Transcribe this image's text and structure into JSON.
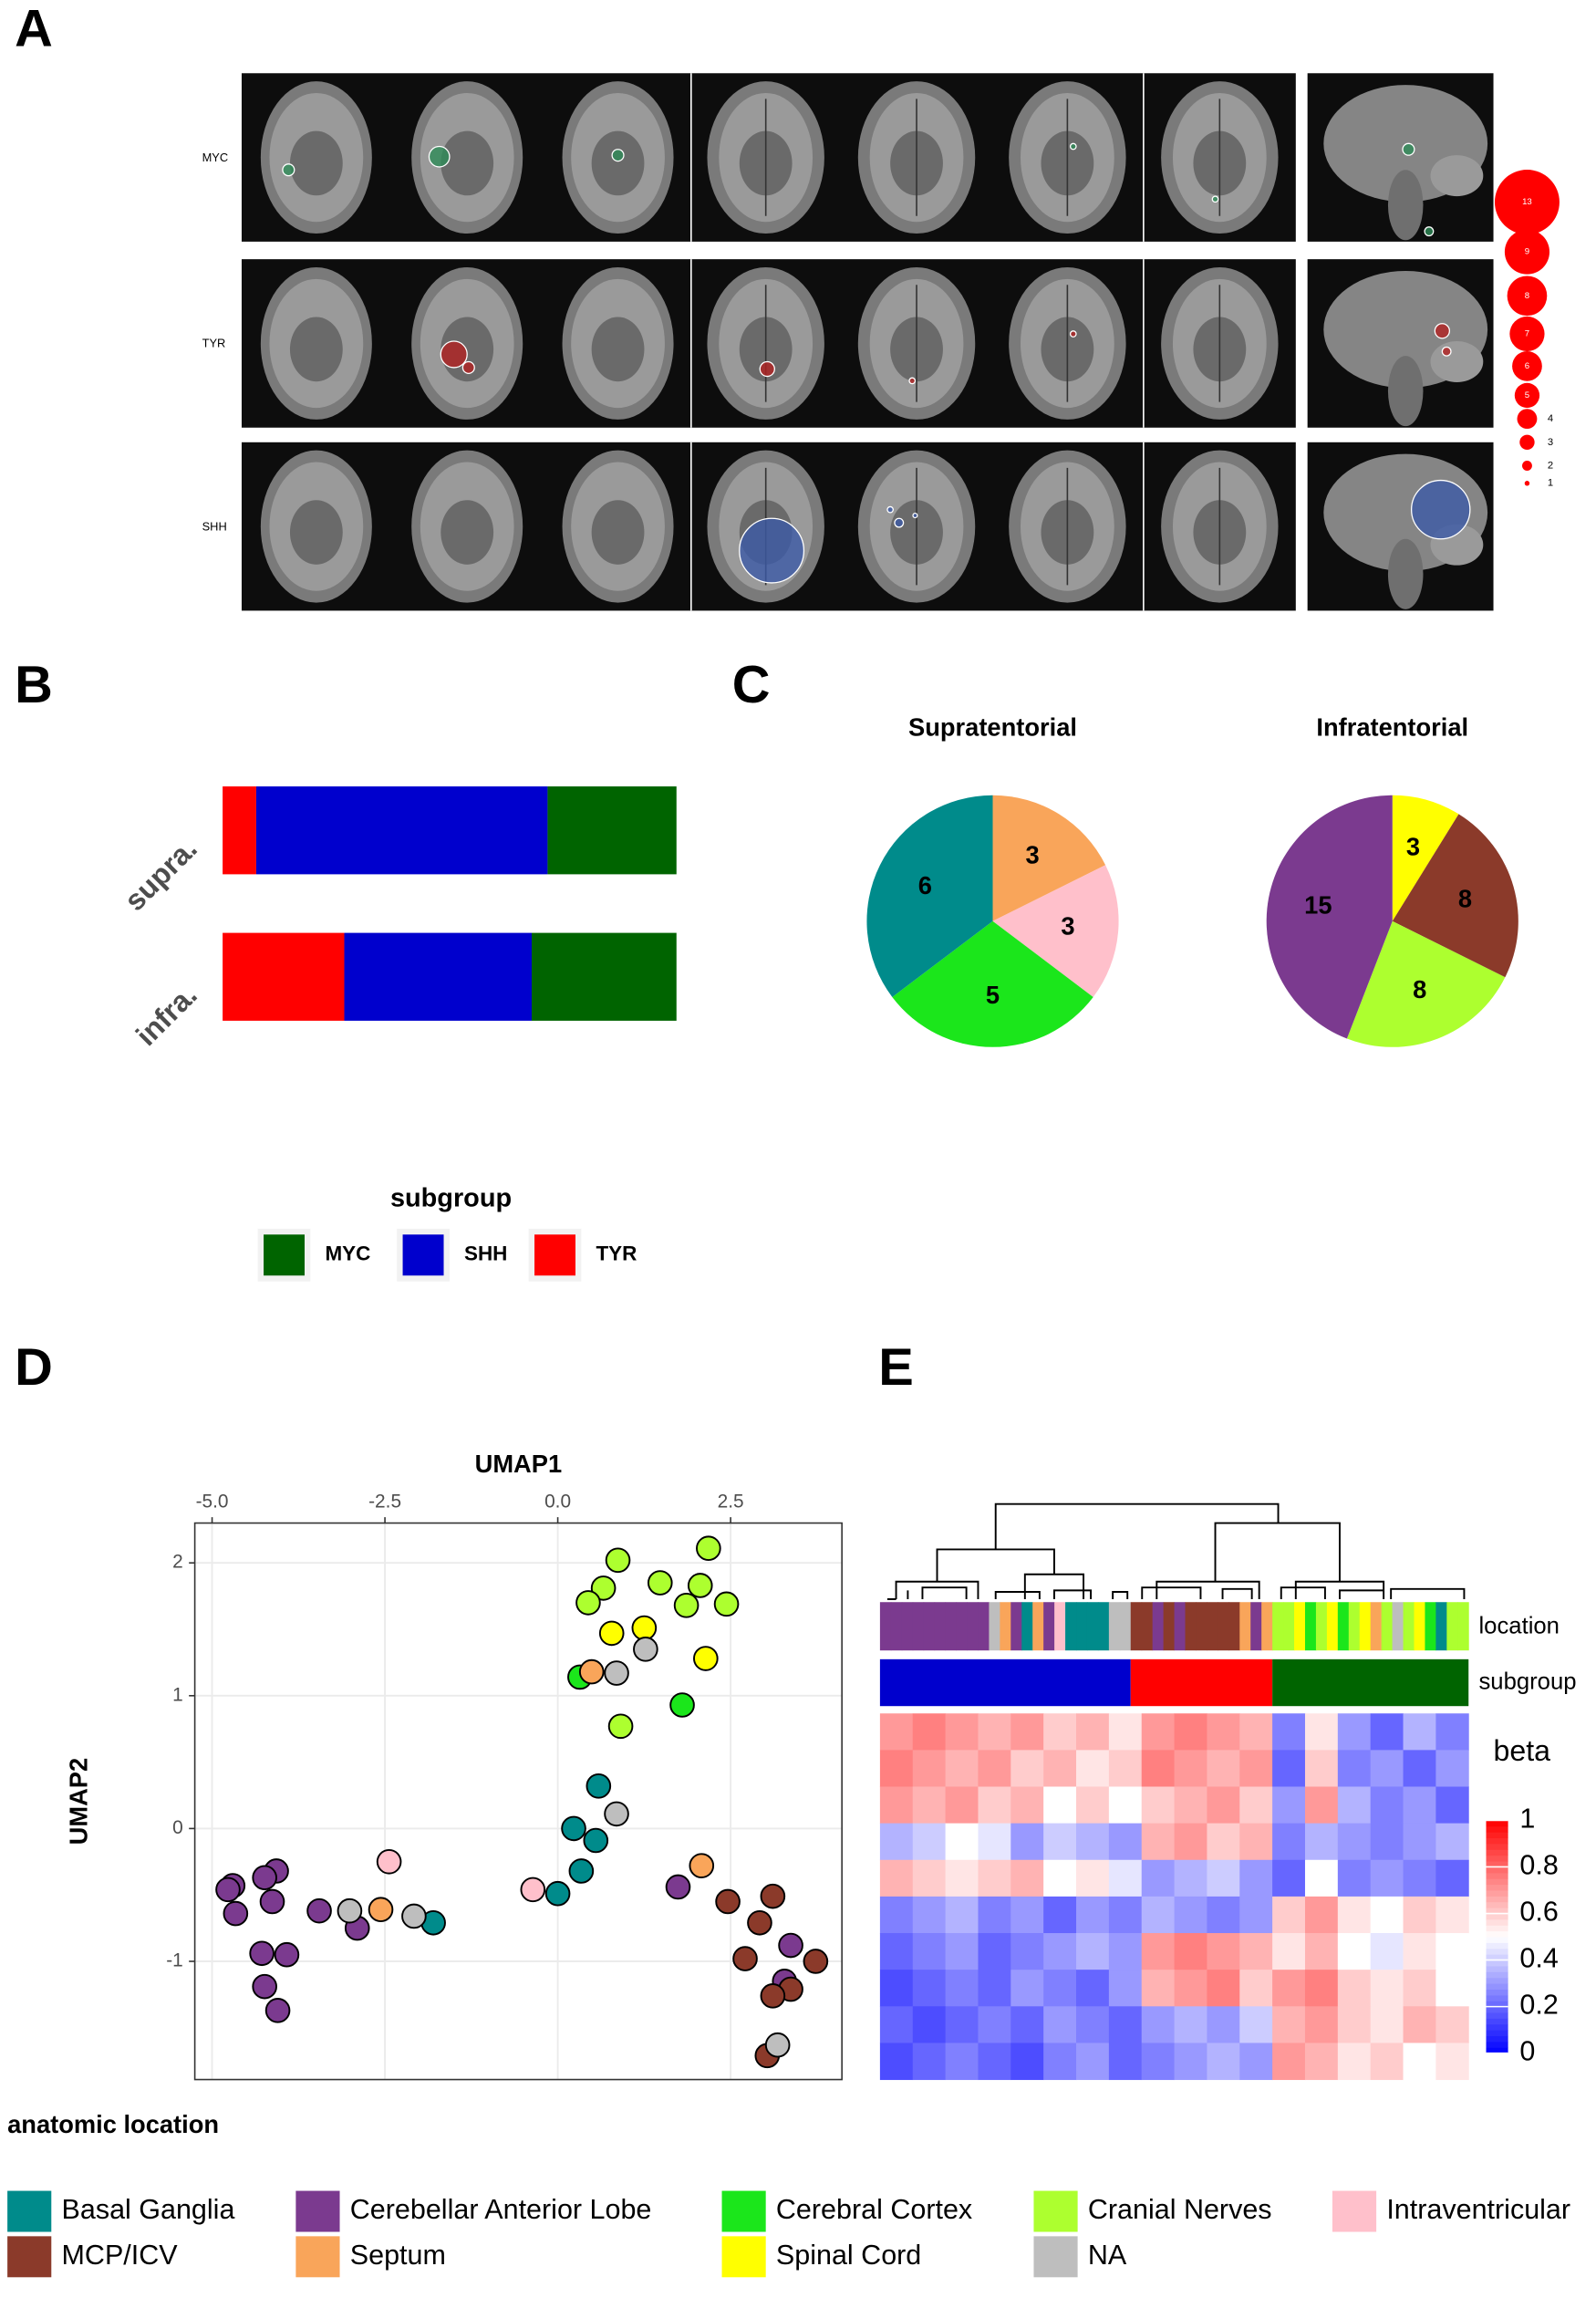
{
  "panels": {
    "a": "A",
    "b": "B",
    "c": "C",
    "d": "D",
    "e": "E"
  },
  "mri": {
    "rows": [
      "MYC",
      "TYR",
      "SHH"
    ],
    "size_legend": [
      13,
      9,
      8,
      7,
      6,
      5,
      4,
      3,
      2,
      1
    ]
  },
  "chart_data": [
    {
      "type": "hbar_stacked",
      "categories": [
        "supra.",
        "infra."
      ],
      "legend_title": "subgroup",
      "series": [
        {
          "name": "MYC",
          "color": "#006400",
          "values": [
            0.284,
            0.319
          ]
        },
        {
          "name": "SHH",
          "color": "#0000cd",
          "values": [
            0.642,
            0.413
          ]
        },
        {
          "name": "TYR",
          "color": "#ff0000",
          "values": [
            0.074,
            0.268
          ]
        }
      ]
    },
    {
      "type": "pie",
      "title": "Supratentorial",
      "values": [
        3,
        3,
        5,
        6
      ],
      "colors": [
        "#f9a55a",
        "#ffc0cb",
        "#1be61b",
        "#008b8b"
      ]
    },
    {
      "type": "pie",
      "title": "Infratentorial",
      "values": [
        3,
        8,
        8,
        15
      ],
      "colors": [
        "#ffff00",
        "#8b3a2a",
        "#adff2f",
        "#7b3a8f"
      ]
    },
    {
      "type": "scatter",
      "xlabel": "UMAP1",
      "ylabel": "UMAP2",
      "xlim": [
        -5.25,
        4.11
      ],
      "ylim": [
        -1.89,
        2.3
      ],
      "xticks": [
        {
          "value": -5,
          "label": "-5.0"
        },
        {
          "value": -2.5,
          "label": "-2.5"
        },
        {
          "value": 0,
          "label": "0.0"
        },
        {
          "value": 2.5,
          "label": "2.5"
        }
      ],
      "yticks": [
        -1,
        0,
        1,
        2
      ],
      "grid": true,
      "legend_title": "anatomic location",
      "series": [
        {
          "name": "Basal Ganglia",
          "color": "#008b8b",
          "x": [
            0.59,
            0.23,
            0.55,
            0.34,
            0.0,
            -1.8
          ],
          "y": [
            0.32,
            0.0,
            -0.09,
            -0.32,
            -0.49,
            -0.71
          ]
        },
        {
          "name": "Cerebellar Anterior Lobe",
          "color": "#7b3a8f",
          "x": [
            1.74,
            3.37,
            3.28,
            -4.7,
            -4.77,
            -4.07,
            -4.24,
            -4.13,
            -4.66,
            -3.45,
            -2.9,
            -4.28,
            -3.92,
            -4.24,
            -4.05
          ],
          "y": [
            -0.44,
            -0.88,
            -1.15,
            -0.43,
            -0.46,
            -0.32,
            -0.37,
            -0.55,
            -0.64,
            -0.62,
            -0.75,
            -0.94,
            -0.95,
            -1.19,
            -1.37
          ]
        },
        {
          "name": "Cerebral Cortex",
          "color": "#1be61b",
          "x": [
            0.32,
            1.8
          ],
          "y": [
            1.14,
            0.93
          ]
        },
        {
          "name": "Cranial Nerves",
          "color": "#adff2f",
          "x": [
            2.18,
            0.87,
            0.66,
            0.44,
            1.48,
            2.06,
            2.44,
            1.86,
            0.91
          ],
          "y": [
            2.11,
            2.02,
            1.81,
            1.7,
            1.85,
            1.83,
            1.69,
            1.68,
            0.77
          ]
        },
        {
          "name": "Intraventricular",
          "color": "#ffc0cb",
          "x": [
            -0.36,
            -2.44
          ],
          "y": [
            -0.46,
            -0.25
          ]
        },
        {
          "name": "MCP/ICV",
          "color": "#8b3a2a",
          "x": [
            2.46,
            3.11,
            2.92,
            2.71,
            3.73,
            3.37,
            3.11,
            3.03
          ],
          "y": [
            -0.55,
            -0.51,
            -0.71,
            -0.98,
            -1.0,
            -1.21,
            -1.26,
            -1.71
          ]
        },
        {
          "name": "Septum",
          "color": "#f9a55a",
          "x": [
            0.49,
            2.08,
            -2.56
          ],
          "y": [
            1.18,
            -0.28,
            -0.61
          ]
        },
        {
          "name": "Spinal Cord",
          "color": "#ffff00",
          "x": [
            1.25,
            0.78,
            2.14
          ],
          "y": [
            1.51,
            1.47,
            1.28
          ]
        },
        {
          "name": "NA",
          "color": "#bebebe",
          "x": [
            1.27,
            0.85,
            0.85,
            3.18,
            -3.01,
            -2.08
          ],
          "y": [
            1.35,
            1.17,
            0.11,
            -1.63,
            -0.62,
            -0.66
          ]
        }
      ]
    },
    {
      "type": "heatmap",
      "annotation_labels": [
        "location",
        "subgroup"
      ],
      "colorbar_title": "beta",
      "clim": [
        0,
        1
      ],
      "cticks": [
        0,
        0.2,
        0.4,
        0.6,
        0.8,
        1
      ],
      "location_colors": [
        "#7b3a8f",
        "#7b3a8f",
        "#7b3a8f",
        "#7b3a8f",
        "#7b3a8f",
        "#7b3a8f",
        "#7b3a8f",
        "#7b3a8f",
        "#7b3a8f",
        "#7b3a8f",
        "#bebebe",
        "#f9a55a",
        "#7b3a8f",
        "#008b8b",
        "#f9a55a",
        "#7b3a8f",
        "#ffc0cb",
        "#008b8b",
        "#008b8b",
        "#008b8b",
        "#008b8b",
        "#bebebe",
        "#bebebe",
        "#8b3a2a",
        "#8b3a2a",
        "#7b3a8f",
        "#8b3a2a",
        "#7b3a8f",
        "#8b3a2a",
        "#8b3a2a",
        "#8b3a2a",
        "#8b3a2a",
        "#8b3a2a",
        "#f9a55a",
        "#7b3a8f",
        "#f9a55a",
        "#adff2f",
        "#adff2f",
        "#ffff00",
        "#1be61b",
        "#adff2f",
        "#ffff00",
        "#1be61b",
        "#adff2f",
        "#ffff00",
        "#f9a55a",
        "#adff2f",
        "#bebebe",
        "#adff2f",
        "#ffff00",
        "#1be61b",
        "#008b8b",
        "#adff2f",
        "#adff2f"
      ],
      "subgroup_counts": [
        23,
        13,
        18
      ],
      "subgroup_colors": [
        "#0000cd",
        "#ff0000",
        "#006400"
      ],
      "z": [
        [
          0.7,
          0.75,
          0.7,
          0.65,
          0.7,
          0.6,
          0.65,
          0.55,
          0.7,
          0.75,
          0.7,
          0.65,
          0.25,
          0.55,
          0.3,
          0.2,
          0.35,
          0.25
        ],
        [
          0.75,
          0.7,
          0.65,
          0.7,
          0.6,
          0.65,
          0.55,
          0.6,
          0.75,
          0.7,
          0.65,
          0.7,
          0.2,
          0.6,
          0.25,
          0.3,
          0.2,
          0.3
        ],
        [
          0.7,
          0.65,
          0.7,
          0.6,
          0.65,
          0.5,
          0.6,
          0.5,
          0.6,
          0.65,
          0.7,
          0.6,
          0.3,
          0.7,
          0.35,
          0.25,
          0.3,
          0.2
        ],
        [
          0.35,
          0.4,
          0.5,
          0.45,
          0.3,
          0.4,
          0.35,
          0.3,
          0.65,
          0.7,
          0.6,
          0.65,
          0.25,
          0.35,
          0.3,
          0.25,
          0.3,
          0.35
        ],
        [
          0.65,
          0.6,
          0.55,
          0.6,
          0.65,
          0.5,
          0.55,
          0.45,
          0.3,
          0.35,
          0.4,
          0.3,
          0.2,
          0.5,
          0.25,
          0.3,
          0.25,
          0.2
        ],
        [
          0.25,
          0.3,
          0.35,
          0.25,
          0.3,
          0.2,
          0.3,
          0.25,
          0.35,
          0.3,
          0.25,
          0.3,
          0.6,
          0.7,
          0.55,
          0.5,
          0.6,
          0.55
        ],
        [
          0.2,
          0.25,
          0.3,
          0.2,
          0.25,
          0.3,
          0.35,
          0.3,
          0.7,
          0.75,
          0.7,
          0.65,
          0.55,
          0.65,
          0.5,
          0.45,
          0.55,
          0.5
        ],
        [
          0.15,
          0.2,
          0.25,
          0.2,
          0.3,
          0.25,
          0.2,
          0.3,
          0.65,
          0.7,
          0.75,
          0.6,
          0.7,
          0.75,
          0.6,
          0.55,
          0.6,
          0.5
        ],
        [
          0.2,
          0.15,
          0.2,
          0.25,
          0.2,
          0.3,
          0.25,
          0.2,
          0.3,
          0.35,
          0.3,
          0.4,
          0.65,
          0.7,
          0.6,
          0.55,
          0.65,
          0.6
        ],
        [
          0.15,
          0.2,
          0.25,
          0.2,
          0.15,
          0.25,
          0.3,
          0.2,
          0.25,
          0.3,
          0.35,
          0.3,
          0.7,
          0.65,
          0.55,
          0.6,
          0.5,
          0.55
        ]
      ]
    }
  ]
}
